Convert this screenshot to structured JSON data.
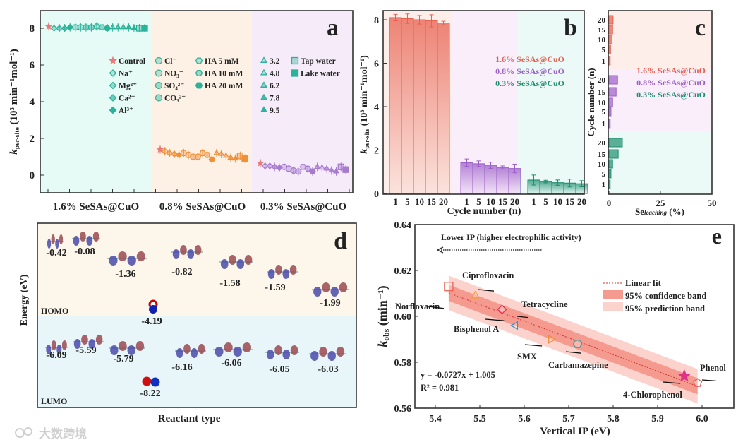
{
  "watermark": "大数跨境",
  "chart_data": [
    {
      "panel": "a",
      "type": "scatter",
      "ylabel": "k_per-site (10^3 min^-1 mol^-1)",
      "ylabel_main": "k",
      "ylabel_sub": "per-site",
      "ylabel_unit": " (10³ min⁻¹mol⁻¹)",
      "ylim": [
        -0.9,
        9.2
      ],
      "yticks": [
        0,
        2,
        4,
        6,
        8
      ],
      "categories": [
        "1.6% SeSAs@CuO",
        "0.8% SeSAs@CuO",
        "0.3% SeSAs@CuO"
      ],
      "region_colors": [
        "#e6faf6",
        "#fdf1e6",
        "#f6ebf8"
      ],
      "series_colors": [
        "#2bb39a",
        "#f0913a",
        "#a77ad0"
      ],
      "legend": [
        "Control",
        "Na⁺",
        "Mg²⁺",
        "Ca²⁺",
        "Al³⁺",
        "Cl⁻",
        "NO₃⁻",
        "SO₄²⁻",
        "CO₃²⁻",
        "HA 5 mM",
        "HA 10 mM",
        "HA 20 mM",
        "3.2",
        "4.8",
        "6.2",
        "7.8",
        "9.5",
        "Tap water",
        "Lake water"
      ],
      "values": [
        [
          8.1,
          8.0,
          8.0,
          8.0,
          8.05,
          8.05,
          8.05,
          8.05,
          8.05,
          8.1,
          8.05,
          8.0,
          8.05,
          8.05,
          8.05,
          8.05,
          8.0,
          8.0,
          8.0
        ],
        [
          1.4,
          1.3,
          1.2,
          1.15,
          1.1,
          1.2,
          1.1,
          1.0,
          1.0,
          1.2,
          1.1,
          0.85,
          1.2,
          1.15,
          1.05,
          0.95,
          0.9,
          1.05,
          0.9
        ],
        [
          0.65,
          0.5,
          0.5,
          0.45,
          0.4,
          0.45,
          0.35,
          0.25,
          0.2,
          0.45,
          0.35,
          0.2,
          0.45,
          0.4,
          0.35,
          0.25,
          0.2,
          0.45,
          0.3
        ]
      ],
      "panel_label": "a"
    },
    {
      "panel": "b",
      "type": "bar",
      "xlabel": "Cycle number (n)",
      "ylabel_main": "k",
      "ylabel_sub": "per-site",
      "ylabel_unit": " (10³ min⁻¹mol⁻¹)",
      "ylim": [
        0,
        8.9
      ],
      "yticks": [
        0,
        2,
        4,
        6,
        8
      ],
      "categories": [
        "1",
        "5",
        "10",
        "15",
        "20"
      ],
      "series": [
        {
          "name": "1.6% SeSAs@CuO",
          "color": "#e8604f",
          "values": [
            8.1,
            8.05,
            8.0,
            7.95,
            7.85
          ],
          "errors": [
            0.15,
            0.22,
            0.2,
            0.28,
            0.08
          ]
        },
        {
          "name": "0.8% SeSAs@CuO",
          "color": "#9b5fc8",
          "values": [
            1.42,
            1.37,
            1.3,
            1.2,
            1.15
          ],
          "errors": [
            0.17,
            0.13,
            0.14,
            0.07,
            0.2
          ]
        },
        {
          "name": "0.3% SeSAs@CuO",
          "color": "#1e8f6e",
          "values": [
            0.62,
            0.55,
            0.5,
            0.48,
            0.45
          ],
          "errors": [
            0.23,
            0.06,
            0.12,
            0.18,
            0.14
          ]
        }
      ],
      "region_colors": [
        "#fdeee9",
        "#fbeefb",
        "#ebfaf7"
      ],
      "panel_label": "b"
    },
    {
      "panel": "c",
      "type": "bar",
      "orientation": "horizontal",
      "xlabel_main": "Se",
      "xlabel_sub": "leaching",
      "xlabel_unit": " (%)",
      "ylabel": "Cycle number (n)",
      "xlim": [
        0,
        50
      ],
      "xticks": [
        0,
        25,
        50
      ],
      "categories": [
        "20",
        "15",
        "10",
        "5",
        "1"
      ],
      "series": [
        {
          "name": "1.6% SeSAs@CuO",
          "color": "#e8604f",
          "values": [
            2.0,
            1.8,
            1.5,
            0.8,
            0.6
          ]
        },
        {
          "name": "0.8% SeSAs@CuO",
          "color": "#9b5fc8",
          "values": [
            4.2,
            3.5,
            1.8,
            1.0,
            0.6
          ]
        },
        {
          "name": "0.3% SeSAs@CuO",
          "color": "#1e8f6e",
          "values": [
            6.5,
            4.5,
            1.8,
            1.0,
            0.6
          ]
        }
      ],
      "region_colors": [
        "#fdeee9",
        "#fbeefb",
        "#ebfaf7"
      ],
      "panel_label": "c"
    },
    {
      "panel": "d",
      "type": "diagram",
      "ylabel": "Energy (eV)",
      "xlabel": "Reactant type",
      "homo_label": "HOMO",
      "lumo_label": "LUMO",
      "homo_values": [
        "-0.42",
        "-0.08",
        "-1.36",
        "-0.82",
        "-1.58",
        "-1.59",
        "-1.99"
      ],
      "lumo_values": [
        "-6.09",
        "-5.59",
        "-5.79",
        "-6.16",
        "-6.06",
        "-6.05",
        "-6.03"
      ],
      "oxidant_homo": "-4.19",
      "oxidant_lumo": "-8.22",
      "region_colors": [
        "#fdf6ea",
        "#e8f6fa"
      ],
      "panel_label": "d"
    },
    {
      "panel": "e",
      "type": "scatter",
      "xlabel": "Vertical IP (eV)",
      "ylabel_main": "k",
      "ylabel_sub": "obs",
      "ylabel_unit": " (min⁻¹)",
      "xlim": [
        5.35,
        6.04
      ],
      "ylim": [
        0.56,
        0.64
      ],
      "xticks": [
        5.4,
        5.5,
        5.6,
        5.7,
        5.8,
        5.9,
        6.0
      ],
      "yticks": [
        0.56,
        0.58,
        0.6,
        0.62,
        0.64
      ],
      "points": [
        {
          "name": "Norfloxacin",
          "x": 5.43,
          "y": 0.613,
          "color": "#e8604f",
          "marker": "square"
        },
        {
          "name": "Ciprofloxacin",
          "x": 5.49,
          "y": 0.609,
          "color": "#f0a030",
          "marker": "triangle"
        },
        {
          "name": "Bisphenol A",
          "x": 5.55,
          "y": 0.603,
          "color": "#e0305a",
          "marker": "diamond"
        },
        {
          "name": "Tetracycline",
          "x": 5.58,
          "y": 0.596,
          "color": "#4090c8",
          "marker": "triangle-left"
        },
        {
          "name": "SMX",
          "x": 5.66,
          "y": 0.59,
          "color": "#f08a30",
          "marker": "triangle-right"
        },
        {
          "name": "Carbamazepine",
          "x": 5.72,
          "y": 0.588,
          "color": "#40a0a0",
          "marker": "hexagon"
        },
        {
          "name": "4-Chlorophenol",
          "x": 5.96,
          "y": 0.574,
          "color": "#e0308a",
          "marker": "star"
        },
        {
          "name": "Phenol",
          "x": 5.99,
          "y": 0.571,
          "color": "#e8504f",
          "marker": "pentagon"
        }
      ],
      "fit": {
        "slope": -0.0727,
        "intercept": 1.005,
        "equation": "y = -0.0727x + 1.005",
        "r2": "R² =  0.981"
      },
      "legend": [
        "Linear fit",
        "95% confidence band",
        "95% prediction band"
      ],
      "annotation": "Lower IP (higher electrophilic activity)",
      "panel_label": "e"
    }
  ]
}
